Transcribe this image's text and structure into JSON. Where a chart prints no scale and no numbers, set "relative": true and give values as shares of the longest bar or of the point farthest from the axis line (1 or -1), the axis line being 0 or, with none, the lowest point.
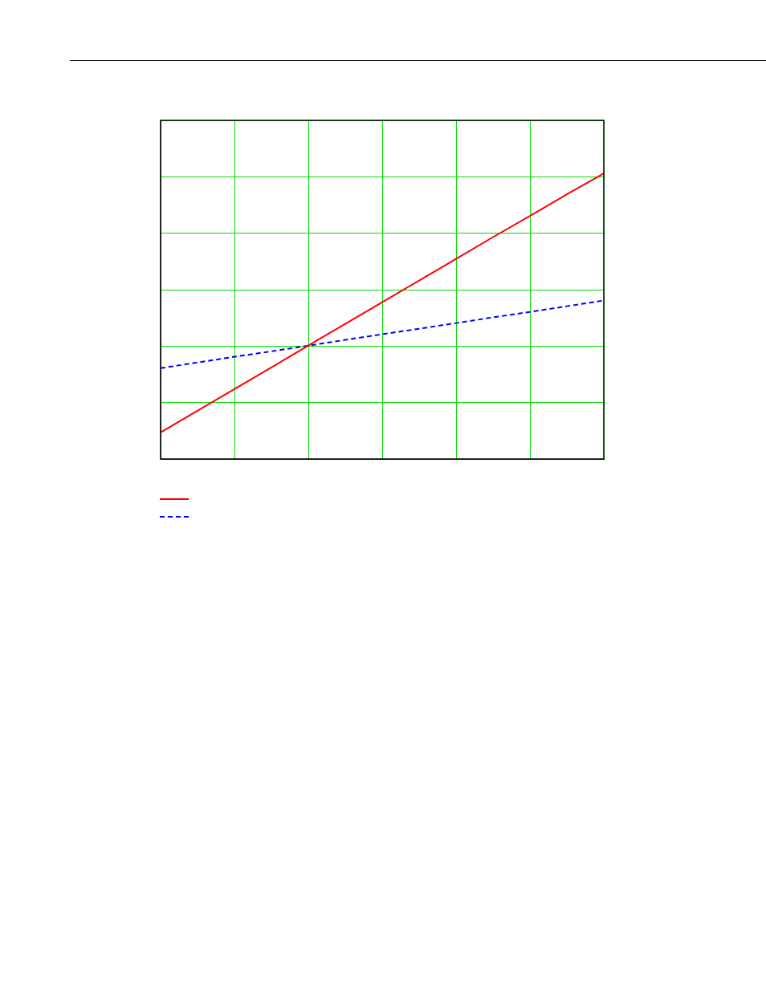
{
  "chart_data": {
    "type": "line",
    "relative": true,
    "grid": true,
    "categories": [
      null,
      null,
      null,
      null,
      null,
      null,
      null,
      null,
      null,
      null,
      null,
      null,
      null
    ],
    "series": [
      {
        "color": "#ff0000",
        "line_style": "solid",
        "values": [
          0.093,
          0.169,
          0.245,
          0.321,
          0.397,
          0.473,
          0.549,
          0.625,
          0.701,
          0.777,
          0.851,
          0.927,
          1
        ]
      },
      {
        "color": "#0000ff",
        "line_style": "dashed",
        "values": [
          0.318,
          0.338,
          0.358,
          0.377,
          0.397,
          0.417,
          0.437,
          0.456,
          0.476,
          0.496,
          0.515,
          0.535,
          0.555
        ]
      }
    ]
  }
}
